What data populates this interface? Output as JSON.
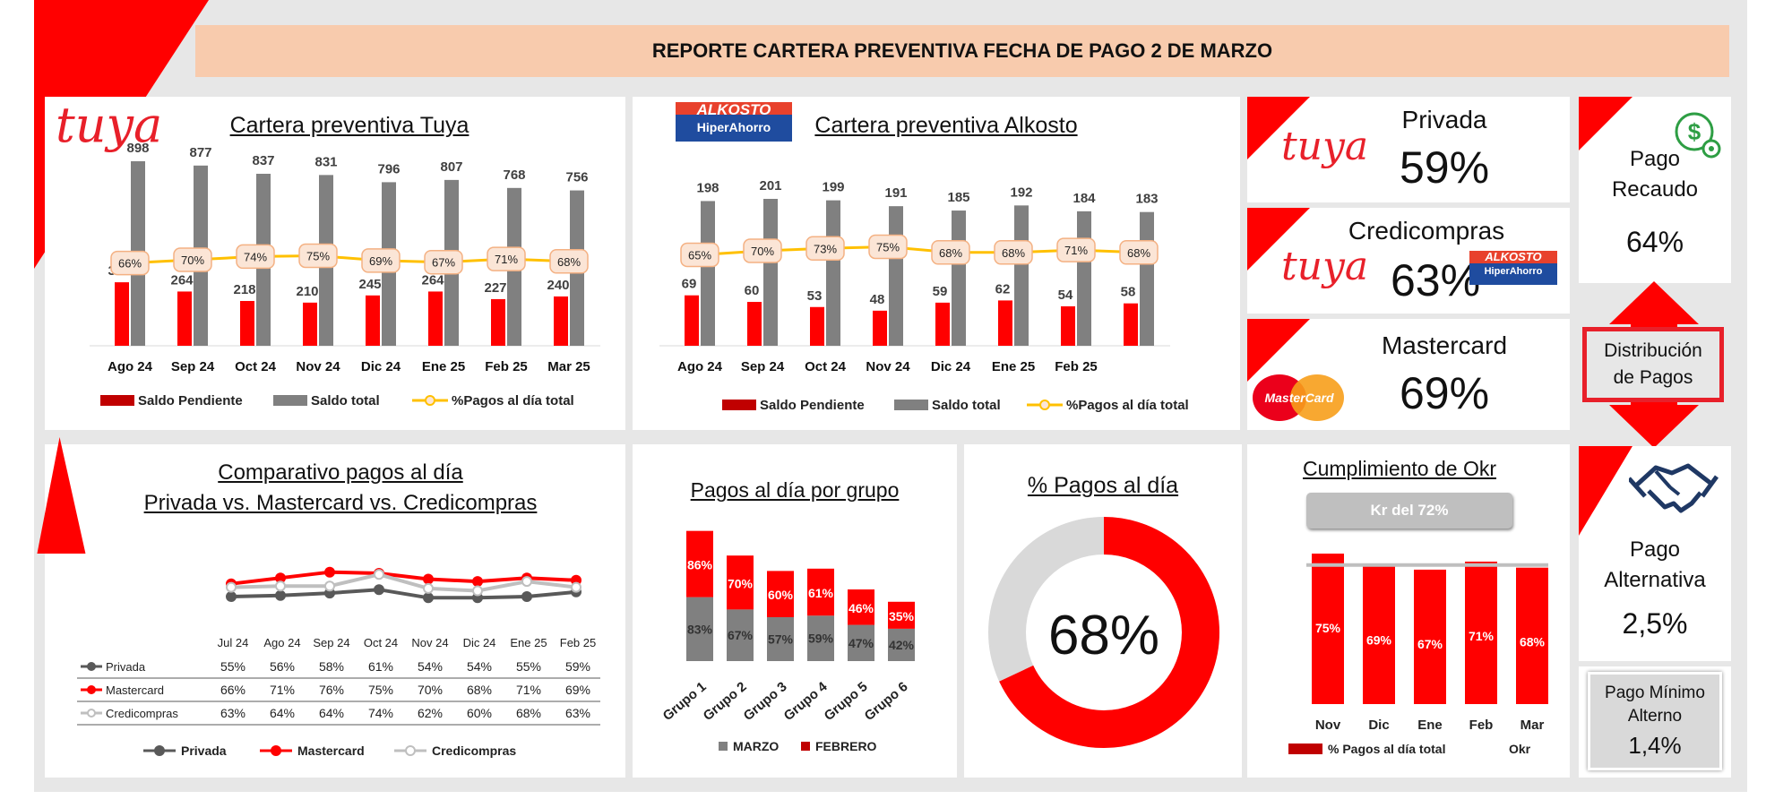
{
  "header": {
    "title": "REPORTE CARTERA PREVENTIVA FECHA DE PAGO 2 DE MARZO"
  },
  "logos": {
    "tuya": "tuya",
    "alkosto_top": "ALKOSTO",
    "alkosto_bottom": "HiperAhorro",
    "mastercard": "MasterCard"
  },
  "colors": {
    "red": "#ff0000",
    "dark_red": "#c00000",
    "gray": "#808080",
    "yellow": "#ffc000",
    "band": "#f8cbad",
    "card_gray": "#d9d9d9"
  },
  "icons": {
    "payment": "money-gear-icon",
    "agreement": "handshake-icon",
    "arrow": "double-arrow-icon"
  },
  "chart_data": [
    {
      "id": "tuya",
      "type": "bar",
      "title": "Cartera preventiva Tuya",
      "categories": [
        "Ago 24",
        "Sep 24",
        "Oct 24",
        "Nov 24",
        "Dic 24",
        "Ene 25",
        "Feb 25",
        "Mar 25"
      ],
      "series": [
        {
          "name": "Saldo Pendiente",
          "values": [
            309,
            264,
            218,
            210,
            245,
            264,
            227,
            240
          ]
        },
        {
          "name": "Saldo total",
          "values": [
            898,
            877,
            837,
            831,
            796,
            807,
            768,
            756
          ]
        },
        {
          "name": "%Pagos al día total",
          "values": [
            "66%",
            "70%",
            "74%",
            "75%",
            "69%",
            "67%",
            "71%",
            "68%"
          ],
          "numeric": [
            66,
            70,
            74,
            75,
            69,
            67,
            71,
            68
          ]
        }
      ],
      "legend": [
        "Saldo Pendiente",
        "Saldo total",
        "%Pagos al día total"
      ]
    },
    {
      "id": "alkosto",
      "type": "bar",
      "title": "Cartera preventiva Alkosto",
      "categories": [
        "Ago 24",
        "Sep 24",
        "Oct 24",
        "Nov 24",
        "Dic 24",
        "Ene 25",
        "Feb 25",
        ""
      ],
      "series": [
        {
          "name": "Saldo Pendiente",
          "values": [
            69,
            60,
            53,
            48,
            59,
            62,
            54,
            58
          ]
        },
        {
          "name": "Saldo total",
          "values": [
            198,
            201,
            199,
            191,
            185,
            192,
            184,
            183
          ]
        },
        {
          "name": "%Pagos al día total",
          "values": [
            "65%",
            "70%",
            "73%",
            "75%",
            "68%",
            "68%",
            "71%",
            "68%"
          ],
          "numeric": [
            65,
            70,
            73,
            75,
            68,
            68,
            71,
            68
          ]
        }
      ],
      "legend": [
        "Saldo Pendiente",
        "Saldo total",
        "%Pagos al día total"
      ]
    },
    {
      "id": "comparativo",
      "type": "line",
      "title": "Comparativo pagos al día",
      "subtitle": "Privada vs. Mastercard vs. Credicompras",
      "categories": [
        "Jul 24",
        "Ago 24",
        "Sep 24",
        "Oct 24",
        "Nov 24",
        "Dic 24",
        "Ene 25",
        "Feb 25"
      ],
      "series": [
        {
          "name": "Privada",
          "values": [
            "55%",
            "56%",
            "58%",
            "61%",
            "54%",
            "54%",
            "55%",
            "59%"
          ],
          "numeric": [
            55,
            56,
            58,
            61,
            54,
            54,
            55,
            59
          ]
        },
        {
          "name": "Mastercard",
          "values": [
            "66%",
            "71%",
            "76%",
            "75%",
            "70%",
            "68%",
            "71%",
            "69%"
          ],
          "numeric": [
            66,
            71,
            76,
            75,
            70,
            68,
            71,
            69
          ]
        },
        {
          "name": "Credicompras",
          "values": [
            "63%",
            "64%",
            "64%",
            "74%",
            "62%",
            "60%",
            "68%",
            "63%"
          ],
          "numeric": [
            63,
            64,
            64,
            74,
            62,
            60,
            68,
            63
          ]
        }
      ]
    },
    {
      "id": "grupos",
      "type": "bar",
      "title": "Pagos al día por grupo",
      "categories": [
        "Grupo 1",
        "Grupo 2",
        "Grupo 3",
        "Grupo 4",
        "Grupo 5",
        "Grupo 6"
      ],
      "series": [
        {
          "name": "MARZO",
          "values": [
            "83%",
            "67%",
            "57%",
            "59%",
            "47%",
            "42%"
          ],
          "numeric": [
            83,
            67,
            57,
            59,
            47,
            42
          ]
        },
        {
          "name": "FEBRERO",
          "values": [
            "86%",
            "70%",
            "60%",
            "61%",
            "46%",
            "35%"
          ],
          "numeric": [
            86,
            70,
            60,
            61,
            46,
            35
          ]
        }
      ]
    },
    {
      "id": "donut",
      "type": "pie",
      "title": "% Pagos al día",
      "center_label": "68%",
      "value": 68
    },
    {
      "id": "okr",
      "type": "bar",
      "title": "Cumplimiento de Okr",
      "target_label": "Kr del 72%",
      "categories": [
        "Nov",
        "Dic",
        "Ene",
        "Feb",
        "Mar"
      ],
      "series": [
        {
          "name": "% Pagos al día total",
          "values": [
            "75%",
            "69%",
            "67%",
            "71%",
            "68%"
          ],
          "numeric": [
            75,
            69,
            67,
            71,
            68
          ]
        }
      ],
      "legend": [
        "% Pagos al día total",
        "Okr"
      ]
    }
  ],
  "kpis": {
    "privada": {
      "label": "Privada",
      "value": "59%"
    },
    "credicompras": {
      "label": "Credicompras",
      "value": "63%"
    },
    "mastercard": {
      "label": "Mastercard",
      "value": "69%"
    },
    "recaudo": {
      "label1": "Pago",
      "label2": "Recaudo",
      "value": "64%"
    },
    "distribucion": {
      "label1": "Distribución",
      "label2": "de Pagos"
    },
    "alternativa": {
      "label1": "Pago",
      "label2": "Alternativa",
      "value": "2,5%"
    },
    "minimo": {
      "label1": "Pago Mínimo",
      "label2": "Alterno",
      "value": "1,4%"
    }
  }
}
